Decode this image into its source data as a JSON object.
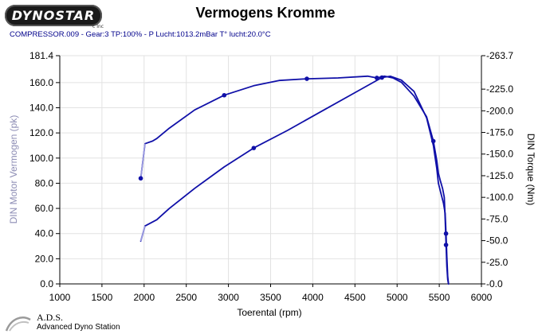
{
  "logo": {
    "text": "DYNOSTAR",
    "sub": "c Inc"
  },
  "chart_data": {
    "type": "line",
    "title": "Vermogens Kromme",
    "subtitle": "COMPRESSOR.009 - Gear:3 TP:100%  - P Lucht:1013.2mBar T° lucht:20.0°C",
    "xlabel": "Toerental (rpm)",
    "ylabel": "DIN Motor Vermogen (pk)",
    "y2label": "DIN Torque (Nm)",
    "xlim": [
      1000,
      6000
    ],
    "ylim": [
      0,
      181.4
    ],
    "y2lim": [
      0,
      263.7
    ],
    "xticks": [
      1000,
      1500,
      2000,
      2500,
      3000,
      3500,
      4000,
      4500,
      5000,
      5500,
      6000
    ],
    "yticks": [
      "0.0",
      "20.0",
      "40.0",
      "60.0",
      "80.0",
      "100.0",
      "120.0",
      "140.0",
      "160.0",
      "181.4"
    ],
    "y2ticks": [
      "0.0",
      "25.0",
      "50.0",
      "75.0",
      "100.0",
      "125.0",
      "150.0",
      "175.0",
      "200.0",
      "225.0",
      "263.7"
    ],
    "y2tick_values": [
      0,
      25,
      50,
      75,
      100,
      125,
      150,
      175,
      200,
      225,
      263.7
    ],
    "grid": true,
    "series": [
      {
        "axis": "right",
        "color": "#1010a8",
        "x": [
          1960,
          2010,
          2100,
          2150,
          2300,
          2600,
          2950,
          3300,
          3600,
          3930,
          4300,
          4650,
          4760,
          4850,
          4950,
          5050,
          5200,
          5350,
          5430,
          5470,
          5490,
          5510,
          5540,
          5560,
          5570,
          5580,
          5590,
          5600,
          5610
        ],
        "y": [
          122,
          162,
          165,
          168,
          180,
          201,
          218,
          229,
          235,
          237,
          238,
          240,
          238,
          240,
          238,
          233,
          217,
          193,
          165,
          143,
          128,
          120,
          110,
          100,
          75,
          45,
          20,
          5,
          0
        ],
        "markers_x": [
          1960,
          2950,
          3930,
          4760,
          5430,
          5580
        ]
      },
      {
        "axis": "left",
        "color": "#1010a8",
        "x": [
          1960,
          2010,
          2150,
          2300,
          2600,
          2950,
          3300,
          3700,
          4100,
          4500,
          4820,
          4920,
          5050,
          5200,
          5350,
          5430,
          5470,
          5490,
          5520,
          5550,
          5570,
          5580,
          5590,
          5600,
          5610
        ],
        "y": [
          34,
          46,
          51,
          60,
          76,
          93,
          108,
          122,
          137,
          152,
          164,
          165,
          162,
          153,
          132,
          110,
          92,
          80,
          72,
          64,
          56,
          40,
          22,
          6,
          0
        ],
        "markers_x": [
          3300,
          4820,
          5580
        ]
      }
    ]
  },
  "footer": {
    "name": "A.D.S.",
    "full": "Advanced Dyno Station"
  }
}
